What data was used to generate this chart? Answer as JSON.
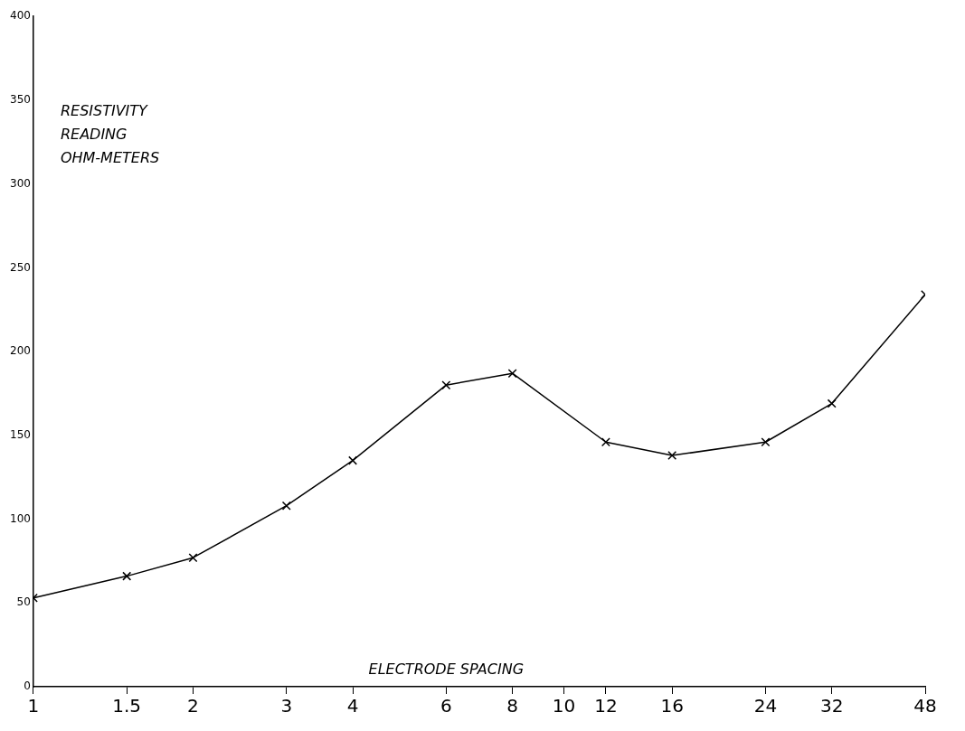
{
  "chart_data": {
    "type": "line",
    "xlabel": "ELECTRODE SPACING",
    "ylabel": "RESISTIVITY READING OHM-METERS",
    "x": [
      1,
      1.5,
      2,
      3,
      4,
      6,
      8,
      12,
      16,
      24,
      32,
      48
    ],
    "series": [
      {
        "color": "#000000",
        "values": [
          53,
          66,
          77,
          108,
          135,
          180,
          187,
          146,
          138,
          146,
          169,
          234
        ]
      }
    ],
    "log": "x",
    "xlim": [
      1,
      48
    ],
    "xticks": [
      1,
      1.5,
      2,
      3,
      4,
      6,
      8,
      10,
      12,
      16,
      24,
      32,
      48
    ],
    "ylim": [
      0,
      400
    ],
    "yticks": [
      0,
      50,
      100,
      150,
      200,
      250,
      300,
      350,
      400
    ],
    "grid": false,
    "legend": false,
    "marker": "cross",
    "line_style": "solid"
  }
}
